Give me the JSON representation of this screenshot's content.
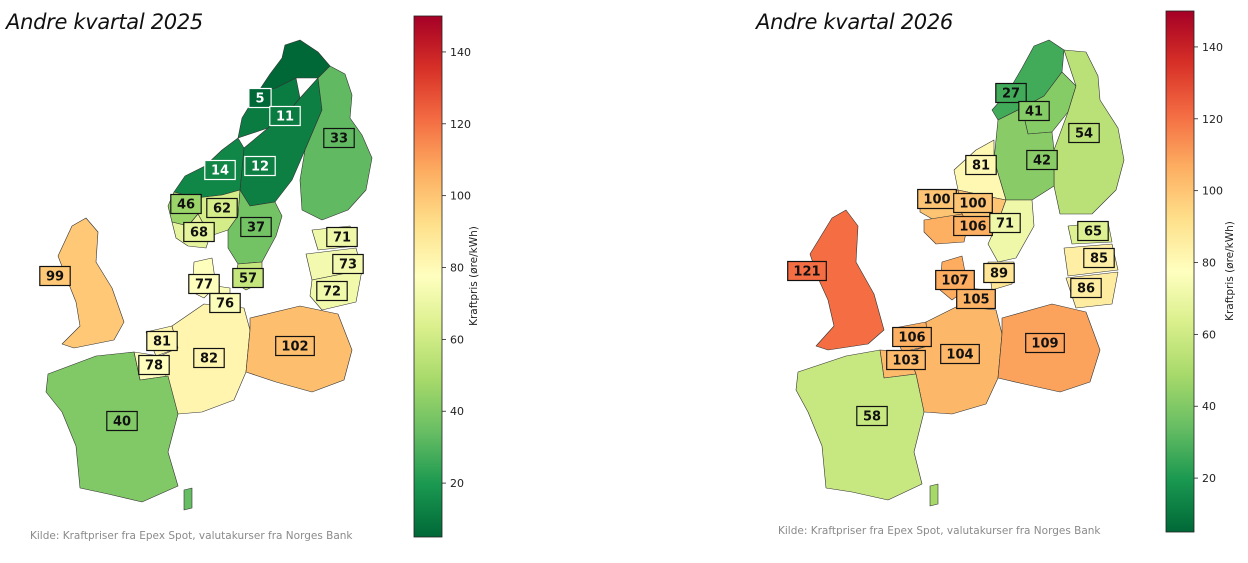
{
  "legend": {
    "colorbar_label": "Kraftpris (øre/kWh)",
    "ticks": [
      20,
      40,
      60,
      80,
      100,
      120,
      140
    ],
    "range": [
      5,
      150
    ],
    "colors": [
      "#006837",
      "#1a9850",
      "#66bd63",
      "#a6d96a",
      "#d9ef8b",
      "#ffffbf",
      "#fee08b",
      "#fdae61",
      "#f46d43",
      "#d73027",
      "#a50026"
    ]
  },
  "maps": [
    {
      "title": "Andre kvartal 2025",
      "source": "Kilde: Kraftpriser fra Epex Spot, valutakurser fra Norges Bank",
      "areas": [
        {
          "name": "NO4 nord",
          "price": 5
        },
        {
          "name": "NO4 sør",
          "price": 11
        },
        {
          "name": "SE1",
          "price": 12
        },
        {
          "name": "NO3",
          "price": 14
        },
        {
          "name": "FI",
          "price": 33
        },
        {
          "name": "NO5",
          "price": 46
        },
        {
          "name": "NO1",
          "price": 62
        },
        {
          "name": "NO2",
          "price": 68
        },
        {
          "name": "SE3",
          "price": 37
        },
        {
          "name": "SE4",
          "price": 57
        },
        {
          "name": "EE",
          "price": 71
        },
        {
          "name": "LV",
          "price": 73
        },
        {
          "name": "LT",
          "price": 72
        },
        {
          "name": "GB",
          "price": 99
        },
        {
          "name": "DK1",
          "price": 77
        },
        {
          "name": "DK2",
          "price": 76
        },
        {
          "name": "NL",
          "price": 81
        },
        {
          "name": "BE",
          "price": 78
        },
        {
          "name": "DE",
          "price": 82
        },
        {
          "name": "PL",
          "price": 102
        },
        {
          "name": "FR",
          "price": 40
        }
      ]
    },
    {
      "title": "Andre kvartal 2026",
      "source": "Kilde: Kraftpriser fra Epex Spot, valutakurser fra Norges Bank",
      "areas": [
        {
          "name": "NO4",
          "price": 27
        },
        {
          "name": "SE1",
          "price": 41
        },
        {
          "name": "FI",
          "price": 54
        },
        {
          "name": "SE2",
          "price": 42
        },
        {
          "name": "NO3",
          "price": 81
        },
        {
          "name": "NO5",
          "price": 100
        },
        {
          "name": "NO1",
          "price": 100
        },
        {
          "name": "NO2",
          "price": 106
        },
        {
          "name": "SE3",
          "price": 71
        },
        {
          "name": "EE",
          "price": 65
        },
        {
          "name": "LV",
          "price": 85
        },
        {
          "name": "LT",
          "price": 86
        },
        {
          "name": "GB",
          "price": 121
        },
        {
          "name": "DK1",
          "price": 107
        },
        {
          "name": "SE4",
          "price": 89
        },
        {
          "name": "DK2",
          "price": 105
        },
        {
          "name": "NL",
          "price": 106
        },
        {
          "name": "BE",
          "price": 103
        },
        {
          "name": "DE",
          "price": 104
        },
        {
          "name": "PL",
          "price": 109
        },
        {
          "name": "FR",
          "price": 58
        }
      ]
    }
  ]
}
